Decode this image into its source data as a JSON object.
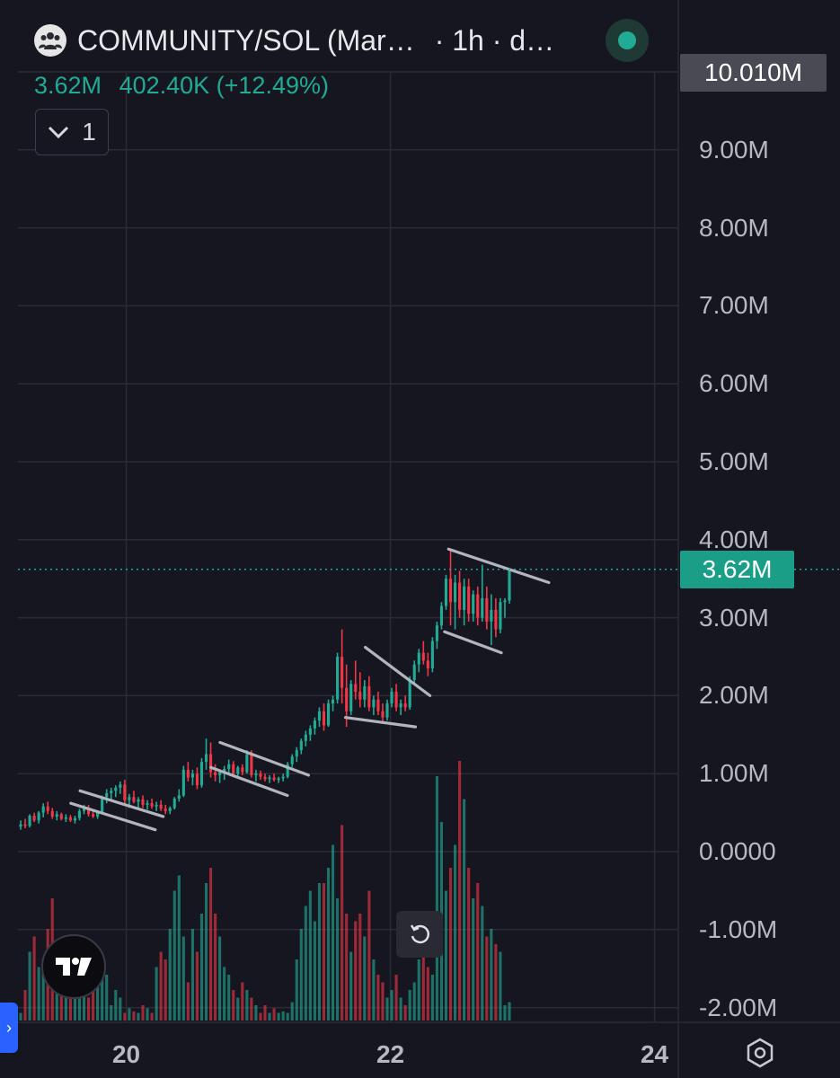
{
  "header": {
    "symbol_title": "COMMUNITY/SOL (Mar…",
    "interval_meta": "· 1h · d…",
    "stat_close": "3.62M",
    "stat_change": "402.40K (+12.49%)",
    "indicator_collapse_count": "1"
  },
  "badges": {
    "last_price": "3.62M",
    "max_price": "10.010M"
  },
  "colors": {
    "up": "#22ab94",
    "down": "#f23645",
    "background": "#161620",
    "grid": "#2b2b36",
    "pattern_line": "#b2b5be"
  },
  "icons": [
    "community-avatar-icon",
    "status-dot-icon",
    "chevron-down-icon",
    "tradingview-logo-icon",
    "reset-icon",
    "settings-hex-icon",
    "sidebar-toggle-icon"
  ],
  "chart_data": {
    "type": "candlestick",
    "interval": "1h",
    "yaxis_ticks": [
      "9.00M",
      "8.00M",
      "7.00M",
      "6.00M",
      "5.00M",
      "4.00M",
      "3.00M",
      "2.00M",
      "1.00M",
      "0.0000",
      "-1.00M",
      "-2.00M"
    ],
    "ylim": [
      -2.2,
      10.01
    ],
    "xaxis_ticks": [
      "20",
      "22",
      "24"
    ],
    "x_range_days": [
      19.18,
      24.18
    ],
    "grid": true,
    "last_price": 3.62,
    "candles_ohlc_millions": [
      [
        0.32,
        0.4,
        0.28,
        0.35
      ],
      [
        0.35,
        0.42,
        0.3,
        0.33
      ],
      [
        0.33,
        0.48,
        0.31,
        0.46
      ],
      [
        0.46,
        0.5,
        0.38,
        0.4
      ],
      [
        0.4,
        0.52,
        0.36,
        0.5
      ],
      [
        0.5,
        0.62,
        0.44,
        0.58
      ],
      [
        0.58,
        0.64,
        0.48,
        0.52
      ],
      [
        0.52,
        0.56,
        0.42,
        0.45
      ],
      [
        0.45,
        0.52,
        0.4,
        0.48
      ],
      [
        0.48,
        0.5,
        0.4,
        0.42
      ],
      [
        0.42,
        0.48,
        0.38,
        0.44
      ],
      [
        0.44,
        0.47,
        0.38,
        0.4
      ],
      [
        0.4,
        0.46,
        0.36,
        0.43
      ],
      [
        0.43,
        0.55,
        0.4,
        0.52
      ],
      [
        0.52,
        0.6,
        0.48,
        0.55
      ],
      [
        0.55,
        0.6,
        0.45,
        0.48
      ],
      [
        0.48,
        0.52,
        0.43,
        0.45
      ],
      [
        0.45,
        0.52,
        0.42,
        0.5
      ],
      [
        0.5,
        0.72,
        0.48,
        0.7
      ],
      [
        0.7,
        0.8,
        0.62,
        0.75
      ],
      [
        0.75,
        0.82,
        0.66,
        0.78
      ],
      [
        0.78,
        0.85,
        0.7,
        0.82
      ],
      [
        0.82,
        0.9,
        0.74,
        0.86
      ],
      [
        0.86,
        0.92,
        0.62,
        0.66
      ],
      [
        0.66,
        0.74,
        0.56,
        0.7
      ],
      [
        0.7,
        0.78,
        0.62,
        0.64
      ],
      [
        0.64,
        0.7,
        0.55,
        0.67
      ],
      [
        0.67,
        0.72,
        0.56,
        0.6
      ],
      [
        0.6,
        0.66,
        0.54,
        0.62
      ],
      [
        0.62,
        0.68,
        0.55,
        0.58
      ],
      [
        0.58,
        0.64,
        0.52,
        0.6
      ],
      [
        0.6,
        0.66,
        0.52,
        0.55
      ],
      [
        0.55,
        0.6,
        0.48,
        0.52
      ],
      [
        0.52,
        0.58,
        0.48,
        0.56
      ],
      [
        0.56,
        0.7,
        0.54,
        0.68
      ],
      [
        0.68,
        0.8,
        0.64,
        0.72
      ],
      [
        0.72,
        1.1,
        0.7,
        1.05
      ],
      [
        1.05,
        1.15,
        0.9,
        0.95
      ],
      [
        0.95,
        1.05,
        0.85,
        1.0
      ],
      [
        1.0,
        1.08,
        0.8,
        0.85
      ],
      [
        0.85,
        1.2,
        0.82,
        1.15
      ],
      [
        1.15,
        1.45,
        1.05,
        1.25
      ],
      [
        1.25,
        1.4,
        0.95,
        1.02
      ],
      [
        1.02,
        1.12,
        0.9,
        0.98
      ],
      [
        0.98,
        1.05,
        0.88,
        1.02
      ],
      [
        1.02,
        1.1,
        0.92,
        1.06
      ],
      [
        1.06,
        1.18,
        0.98,
        1.12
      ],
      [
        1.12,
        1.16,
        0.96,
        1.0
      ],
      [
        1.0,
        1.1,
        0.94,
        1.08
      ],
      [
        1.08,
        1.12,
        0.98,
        1.02
      ],
      [
        1.02,
        1.3,
        1.0,
        1.25
      ],
      [
        1.25,
        1.3,
        0.95,
        0.98
      ],
      [
        0.98,
        1.05,
        0.9,
        1.0
      ],
      [
        1.0,
        1.04,
        0.92,
        0.96
      ],
      [
        0.96,
        1.0,
        0.9,
        0.93
      ],
      [
        0.93,
        0.98,
        0.88,
        0.95
      ],
      [
        0.95,
        1.0,
        0.9,
        0.92
      ],
      [
        0.92,
        0.96,
        0.88,
        0.94
      ],
      [
        0.94,
        1.0,
        0.9,
        0.96
      ],
      [
        0.96,
        1.15,
        0.94,
        1.12
      ],
      [
        1.12,
        1.25,
        1.08,
        1.22
      ],
      [
        1.22,
        1.34,
        1.15,
        1.3
      ],
      [
        1.3,
        1.45,
        1.25,
        1.42
      ],
      [
        1.42,
        1.55,
        1.35,
        1.5
      ],
      [
        1.5,
        1.62,
        1.42,
        1.58
      ],
      [
        1.58,
        1.72,
        1.5,
        1.68
      ],
      [
        1.68,
        1.85,
        1.6,
        1.8
      ],
      [
        1.8,
        1.9,
        1.55,
        1.62
      ],
      [
        1.62,
        1.95,
        1.6,
        1.9
      ],
      [
        1.9,
        2.0,
        1.8,
        1.95
      ],
      [
        1.95,
        2.55,
        1.9,
        2.5
      ],
      [
        2.5,
        2.85,
        1.9,
        2.1
      ],
      [
        2.1,
        2.4,
        1.6,
        1.8
      ],
      [
        1.8,
        2.2,
        1.75,
        2.15
      ],
      [
        2.15,
        2.45,
        1.95,
        2.05
      ],
      [
        2.05,
        2.3,
        1.85,
        1.95
      ],
      [
        1.95,
        2.2,
        1.85,
        2.12
      ],
      [
        2.12,
        2.25,
        1.8,
        1.85
      ],
      [
        1.85,
        2.0,
        1.75,
        1.95
      ],
      [
        1.95,
        2.05,
        1.75,
        1.8
      ],
      [
        1.8,
        1.9,
        1.65,
        1.72
      ],
      [
        1.72,
        1.95,
        1.68,
        1.9
      ],
      [
        1.9,
        2.1,
        1.85,
        2.05
      ],
      [
        2.05,
        2.15,
        1.8,
        1.85
      ],
      [
        1.85,
        1.95,
        1.75,
        1.9
      ],
      [
        1.9,
        2.0,
        1.8,
        1.85
      ],
      [
        1.85,
        2.25,
        1.82,
        2.2
      ],
      [
        2.2,
        2.45,
        2.15,
        2.4
      ],
      [
        2.4,
        2.6,
        2.3,
        2.55
      ],
      [
        2.55,
        2.7,
        2.4,
        2.45
      ],
      [
        2.45,
        2.55,
        2.25,
        2.35
      ],
      [
        2.35,
        2.75,
        2.3,
        2.7
      ],
      [
        2.7,
        2.95,
        2.6,
        2.9
      ],
      [
        2.9,
        3.2,
        2.85,
        3.15
      ],
      [
        3.15,
        3.55,
        3.1,
        3.5
      ],
      [
        3.5,
        3.88,
        2.9,
        3.2
      ],
      [
        3.2,
        3.55,
        2.85,
        3.45
      ],
      [
        3.45,
        3.6,
        3.0,
        3.1
      ],
      [
        3.1,
        3.5,
        2.9,
        3.4
      ],
      [
        3.4,
        3.5,
        2.95,
        3.05
      ],
      [
        3.05,
        3.35,
        2.95,
        3.3
      ],
      [
        3.3,
        3.4,
        2.9,
        3.0
      ],
      [
        3.0,
        3.68,
        2.95,
        3.25
      ],
      [
        3.25,
        3.4,
        2.85,
        2.95
      ],
      [
        2.95,
        3.3,
        2.65,
        3.1
      ],
      [
        3.1,
        3.25,
        2.75,
        2.85
      ],
      [
        2.85,
        3.25,
        2.8,
        3.2
      ],
      [
        3.2,
        3.25,
        3.0,
        3.22
      ],
      [
        3.22,
        3.62,
        3.18,
        3.62
      ]
    ],
    "volume_relative": [
      0.05,
      0.2,
      0.45,
      0.55,
      0.35,
      0.4,
      0.6,
      0.8,
      0.45,
      0.3,
      0.5,
      0.25,
      0.2,
      0.35,
      0.4,
      0.15,
      0.3,
      0.25,
      0.35,
      0.3,
      0.1,
      0.2,
      0.15,
      0.05,
      0.08,
      0.06,
      0.05,
      0.1,
      0.08,
      0.05,
      0.35,
      0.45,
      0.4,
      0.6,
      0.85,
      0.95,
      0.55,
      0.25,
      0.6,
      0.45,
      0.7,
      0.9,
      1.0,
      0.7,
      0.55,
      0.35,
      0.3,
      0.2,
      0.15,
      0.25,
      0.2,
      0.15,
      0.1,
      0.05,
      0.1,
      0.05,
      0.08,
      0.05,
      0.06,
      0.05,
      0.12,
      0.4,
      0.6,
      0.75,
      0.85,
      0.65,
      0.9,
      0.9,
      1.0,
      1.15,
      0.8,
      1.28,
      0.7,
      0.45,
      0.65,
      0.7,
      0.55,
      0.85,
      0.4,
      0.3,
      0.25,
      0.15,
      0.2,
      0.3,
      0.15,
      0.1,
      0.2,
      0.25,
      0.4,
      0.5,
      0.35,
      0.3,
      1.6,
      1.3,
      0.85,
      1.0,
      1.15,
      1.7,
      1.45,
      1.0,
      0.8,
      0.9,
      0.75,
      0.55,
      0.6,
      0.5,
      0.45,
      0.1,
      0.12
    ],
    "pattern_lines": [
      {
        "from": [
          19.65,
          0.78
        ],
        "to": [
          20.28,
          0.45
        ]
      },
      {
        "from": [
          19.58,
          0.62
        ],
        "to": [
          20.22,
          0.28
        ]
      },
      {
        "from": [
          20.71,
          1.4
        ],
        "to": [
          21.38,
          0.98
        ]
      },
      {
        "from": [
          20.64,
          1.08
        ],
        "to": [
          21.22,
          0.72
        ]
      },
      {
        "from": [
          21.81,
          2.62
        ],
        "to": [
          22.3,
          2.0
        ]
      },
      {
        "from": [
          21.66,
          1.72
        ],
        "to": [
          22.19,
          1.6
        ]
      },
      {
        "from": [
          22.44,
          3.88
        ],
        "to": [
          23.2,
          3.45
        ]
      },
      {
        "from": [
          22.41,
          2.82
        ],
        "to": [
          22.84,
          2.55
        ]
      }
    ]
  }
}
